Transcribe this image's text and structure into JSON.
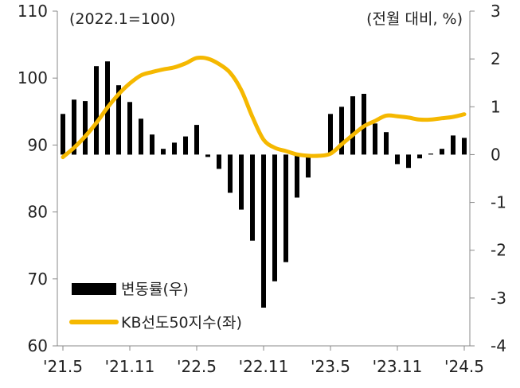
{
  "chart_data": {
    "type": "bar+line",
    "dual_axis": true,
    "left_axis_note": "(2022.1=100)",
    "right_axis_note": "(전월 대비, %)",
    "x_tick_labels": [
      "'21.5",
      "'21.11",
      "'22.5",
      "'22.11",
      "'23.5",
      "'23.11",
      "'24.5"
    ],
    "categories": [
      "'21.5",
      "'21.6",
      "'21.7",
      "'21.8",
      "'21.9",
      "'21.10",
      "'21.11",
      "'21.12",
      "'22.1",
      "'22.2",
      "'22.3",
      "'22.4",
      "'22.5",
      "'22.6",
      "'22.7",
      "'22.8",
      "'22.9",
      "'22.10",
      "'22.11",
      "'22.12",
      "'23.1",
      "'23.2",
      "'23.3",
      "'23.4",
      "'23.5",
      "'23.6",
      "'23.7",
      "'23.8",
      "'23.9",
      "'23.10",
      "'23.11",
      "'23.12",
      "'24.1",
      "'24.2",
      "'24.3",
      "'24.4",
      "'24.5"
    ],
    "left_axis": {
      "ylim": [
        60,
        110
      ],
      "ticks": [
        "60",
        "70",
        "80",
        "90",
        "100",
        "110"
      ]
    },
    "right_axis": {
      "ylim": [
        -4,
        3
      ],
      "ticks": [
        "-4",
        "-3",
        "-2",
        "-1",
        "0",
        "1",
        "2",
        "3"
      ]
    },
    "series": [
      {
        "name": "변동률(우)",
        "type": "bar",
        "axis": "right",
        "color": "#000000",
        "values": [
          0.85,
          1.15,
          1.12,
          1.85,
          1.95,
          1.45,
          1.1,
          0.75,
          0.42,
          0.12,
          0.25,
          0.38,
          0.62,
          -0.05,
          -0.3,
          -0.8,
          -1.15,
          -1.8,
          -3.2,
          -2.65,
          -2.25,
          -0.9,
          -0.48,
          -0.05,
          0.85,
          1.0,
          1.22,
          1.27,
          0.65,
          0.47,
          -0.2,
          -0.28,
          -0.08,
          0.02,
          0.12,
          0.4,
          0.35
        ]
      },
      {
        "name": "KB선도50지수(좌)",
        "type": "line",
        "axis": "left",
        "color": "#f5b800",
        "values": [
          88.2,
          89.6,
          91.3,
          93.3,
          95.6,
          97.6,
          99.2,
          100.4,
          100.9,
          101.3,
          101.6,
          102.2,
          103.0,
          102.9,
          102.1,
          100.8,
          98.2,
          94.2,
          90.8,
          89.6,
          89.1,
          88.6,
          88.4,
          88.4,
          88.7,
          90.1,
          91.5,
          92.8,
          93.6,
          94.4,
          94.3,
          94.1,
          93.8,
          93.8,
          94.0,
          94.2,
          94.6
        ]
      }
    ],
    "grid": false,
    "legend_position": "bottom-left"
  }
}
